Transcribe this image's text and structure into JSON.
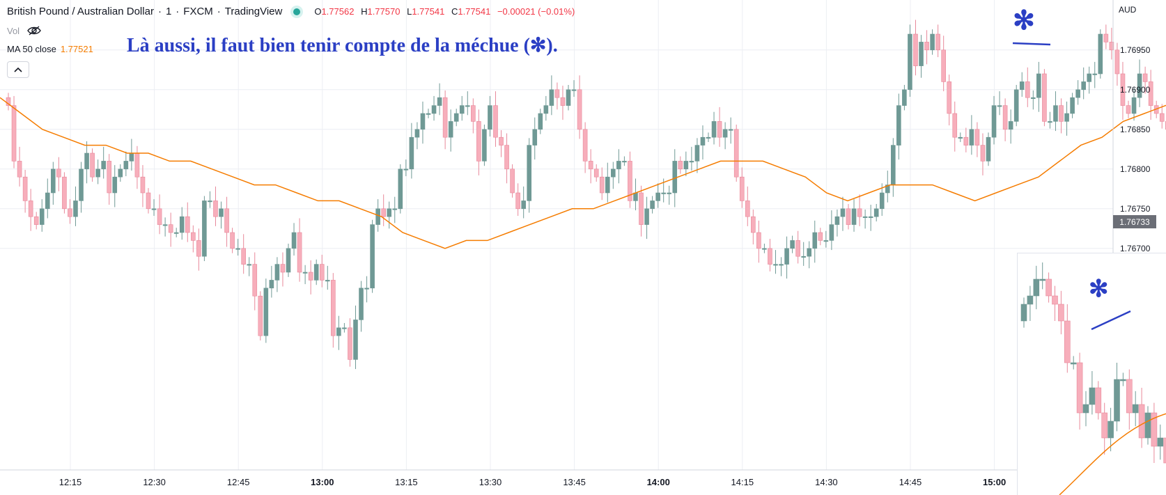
{
  "header": {
    "symbol": "British Pound / Australian Dollar",
    "interval": "1",
    "exchange": "FXCM",
    "platform": "TradingView",
    "sep": "·",
    "o_label": "O",
    "o": "1.77562",
    "h_label": "H",
    "h": "1.77570",
    "l_label": "L",
    "l": "1.77541",
    "c_label": "C",
    "c": "1.77541",
    "change": "−0.00021 (−0.01%)"
  },
  "indicators": {
    "vol_label": "Vol",
    "ma_label": "MA 50 close",
    "ma_value": "1.77521"
  },
  "annotation": {
    "text": "Là aussi, il faut bien tenir compte de la méchue (✻).",
    "star": "✻"
  },
  "price_axis": {
    "currency": "AUD",
    "current_price": "1.76733"
  },
  "colors": {
    "up": "#6f9995",
    "down": "#f7aebb",
    "down_border": "#e8889a",
    "ma": "#f57c00",
    "annotation": "#2b3fc4",
    "grid": "#eceef3"
  },
  "icons": {
    "eye_off": "eye-off-icon",
    "chevron_up": "chevron-up-icon",
    "live_dot": "live-dot-icon"
  },
  "chart_data": {
    "type": "candlestick",
    "title": "British Pound / Australian Dollar · 1 · FXCM",
    "y_ticks": [
      "1.76950",
      "1.76900",
      "1.76850",
      "1.76800",
      "1.76750",
      "1.76700"
    ],
    "ylim": [
      1.7657,
      1.7701
    ],
    "x_ticks": [
      "12:15",
      "12:30",
      "12:45",
      "13:00",
      "13:15",
      "13:30",
      "13:45",
      "14:00",
      "14:15",
      "14:30",
      "14:45",
      "15:00"
    ],
    "main_closes": [
      1.7688,
      1.7681,
      1.7679,
      1.7676,
      1.7674,
      1.7673,
      1.7675,
      1.7677,
      1.768,
      1.7679,
      1.7675,
      1.7674,
      1.7676,
      1.768,
      1.7682,
      1.7679,
      1.768,
      1.7681,
      1.7677,
      1.7679,
      1.768,
      1.7681,
      1.7682,
      1.7679,
      1.7677,
      1.7675,
      1.7675,
      1.7673,
      1.7673,
      1.7672,
      1.7672,
      1.7674,
      1.7672,
      1.7671,
      1.7669,
      1.7676,
      1.7676,
      1.7674,
      1.7675,
      1.7672,
      1.767,
      1.767,
      1.7668,
      1.7668,
      1.7664,
      1.7659,
      1.7665,
      1.7666,
      1.7668,
      1.7667,
      1.767,
      1.7672,
      1.7667,
      1.7667,
      1.7666,
      1.7668,
      1.7666,
      1.7666,
      1.7659,
      1.766,
      1.766,
      1.7656,
      1.7661,
      1.7665,
      1.7665,
      1.7673,
      1.7675,
      1.7674,
      1.7675,
      1.7675,
      1.768,
      1.768,
      1.7684,
      1.7685,
      1.7687,
      1.7687,
      1.7688,
      1.7689,
      1.7684,
      1.7686,
      1.7687,
      1.7688,
      1.7688,
      1.7686,
      1.7681,
      1.7685,
      1.7688,
      1.7684,
      1.7683,
      1.768,
      1.7677,
      1.7675,
      1.7676,
      1.7683,
      1.7685,
      1.7687,
      1.7688,
      1.769,
      1.7689,
      1.7688,
      1.769,
      1.769,
      1.7685,
      1.7681,
      1.768,
      1.7679,
      1.7677,
      1.7679,
      1.768,
      1.7681,
      1.7681,
      1.7676,
      1.7677,
      1.7673,
      1.7675,
      1.7676,
      1.7677,
      1.7677,
      1.7677,
      1.7681,
      1.768,
      1.7681,
      1.7681,
      1.7683,
      1.7684,
      1.7684,
      1.7686,
      1.7684,
      1.7685,
      1.7685,
      1.7679,
      1.7676,
      1.7674,
      1.7672,
      1.767,
      1.767,
      1.7668,
      1.7668,
      1.7668,
      1.767,
      1.7671,
      1.7669,
      1.7669,
      1.767,
      1.7672,
      1.7671,
      1.7671,
      1.7673,
      1.7674,
      1.7675,
      1.7673,
      1.7675,
      1.7674,
      1.7674,
      1.7674,
      1.7675,
      1.7677,
      1.7678,
      1.7683,
      1.7688,
      1.769,
      1.7697,
      1.7693,
      1.7696,
      1.7695,
      1.7697,
      1.7695,
      1.7691,
      1.7687,
      1.7684,
      1.7684,
      1.7683,
      1.7685,
      1.7683,
      1.7681,
      1.7684,
      1.7688,
      1.7688,
      1.7685,
      1.7686,
      1.769,
      1.7691,
      1.7689,
      1.7689,
      1.7692,
      1.7686,
      1.7686,
      1.7688,
      1.7686,
      1.7687,
      1.7689,
      1.769,
      1.7691,
      1.7692,
      1.7692,
      1.7697,
      1.7696,
      1.7695,
      1.7692,
      1.7688,
      1.7687,
      1.7689,
      1.7692,
      1.7691,
      1.7688,
      1.7687,
      1.7686,
      1.7685,
      1.7689,
      1.7683,
      1.7678,
      1.7676,
      1.768,
      1.7677,
      1.7672,
      1.767,
      1.767,
      1.7673
    ],
    "ma_series": {
      "name": "MA 50 close",
      "values": [
        1.7689,
        1.7687,
        1.7685,
        1.7684,
        1.7683,
        1.7683,
        1.7682,
        1.7682,
        1.7681,
        1.7681,
        1.768,
        1.7679,
        1.7678,
        1.7678,
        1.7677,
        1.7676,
        1.7676,
        1.7675,
        1.7674,
        1.7672,
        1.7671,
        1.767,
        1.7671,
        1.7671,
        1.7672,
        1.7673,
        1.7674,
        1.7675,
        1.7675,
        1.7676,
        1.7677,
        1.7678,
        1.7679,
        1.768,
        1.7681,
        1.7681,
        1.7681,
        1.768,
        1.7679,
        1.7677,
        1.7676,
        1.7677,
        1.7678,
        1.7678,
        1.7678,
        1.7677,
        1.7676,
        1.7677,
        1.7678,
        1.7679,
        1.7681,
        1.7683,
        1.7684,
        1.7686,
        1.7687,
        1.7688,
        1.7689,
        1.7689,
        1.7687
      ]
    },
    "inset_closes": [
      1.7669,
      1.767,
      1.7672,
      1.7672,
      1.767,
      1.7669,
      1.7667,
      1.7662,
      1.7662,
      1.7656,
      1.7657,
      1.7659,
      1.7656,
      1.7653,
      1.7655,
      1.766,
      1.766,
      1.7656,
      1.7657,
      1.7653,
      1.7656,
      1.7652,
      1.7653,
      1.765
    ],
    "price_label": "1.76733"
  }
}
